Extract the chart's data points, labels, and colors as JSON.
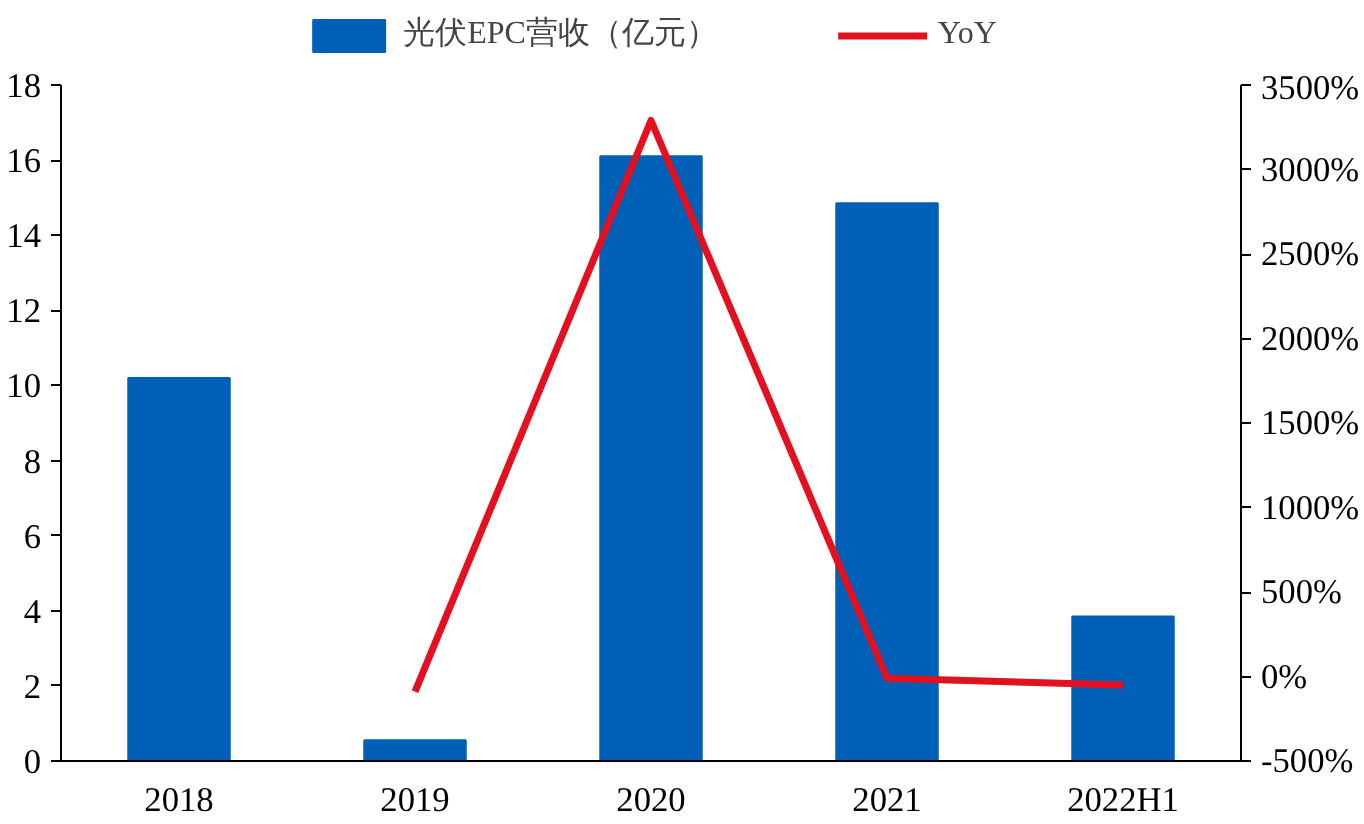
{
  "chart_data": {
    "type": "bar",
    "categories": [
      "2018",
      "2019",
      "2020",
      "2021",
      "2022H1"
    ],
    "series": [
      {
        "name": "光伏EPC营收（亿元）",
        "color": "#0060b8",
        "values": [
          10.2,
          0.55,
          16.1,
          14.85,
          3.85
        ]
      },
      {
        "name": "YoY",
        "type": "line",
        "color": "#e3101f",
        "axis": "y2",
        "values": [
          null,
          -90,
          3290,
          -10,
          -50
        ]
      }
    ],
    "ylim": [
      0,
      18
    ],
    "yticks": [
      0,
      2,
      4,
      6,
      8,
      10,
      12,
      14,
      16,
      18
    ],
    "y2lim": [
      -500,
      3500
    ],
    "y2ticks": [
      {
        "value": -500,
        "label": "-500%"
      },
      {
        "value": 0,
        "label": "0%"
      },
      {
        "value": 500,
        "label": "500%"
      },
      {
        "value": 1000,
        "label": "1000%"
      },
      {
        "value": 1500,
        "label": "1500%"
      },
      {
        "value": 2000,
        "label": "2000%"
      },
      {
        "value": 2500,
        "label": "2500%"
      },
      {
        "value": 3000,
        "label": "3000%"
      },
      {
        "value": 3500,
        "label": "3500%"
      }
    ],
    "legend": "top",
    "grid": false,
    "marker": "none",
    "line_style": "solid"
  }
}
